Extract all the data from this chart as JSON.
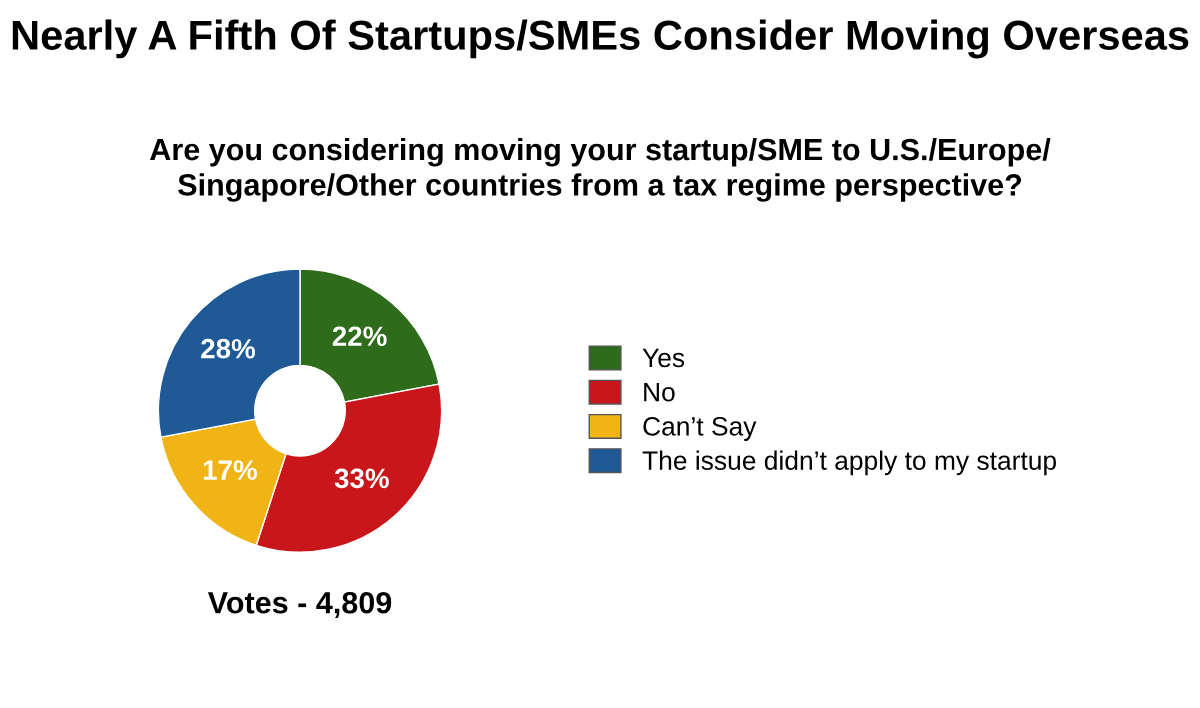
{
  "chart_data": {
    "type": "donut",
    "title": "Nearly A Fifth Of Startups/SMEs Consider Moving Overseas",
    "subtitle": "Are you considering moving your startup/SME to U.S./Europe/\nSingapore/Other countries from a tax regime perspective?",
    "categories": [
      "Yes",
      "No",
      "Can’t Say",
      "The issue didn’t apply to my startup"
    ],
    "values": [
      22,
      33,
      17,
      28
    ],
    "colors": [
      "#2e6b1a",
      "#c8161a",
      "#f0b416",
      "#1f5a96"
    ],
    "value_labels": [
      "22%",
      "33%",
      "17%",
      "28%"
    ],
    "annotations": [
      "Votes - 4,809"
    ],
    "legend": "right"
  }
}
